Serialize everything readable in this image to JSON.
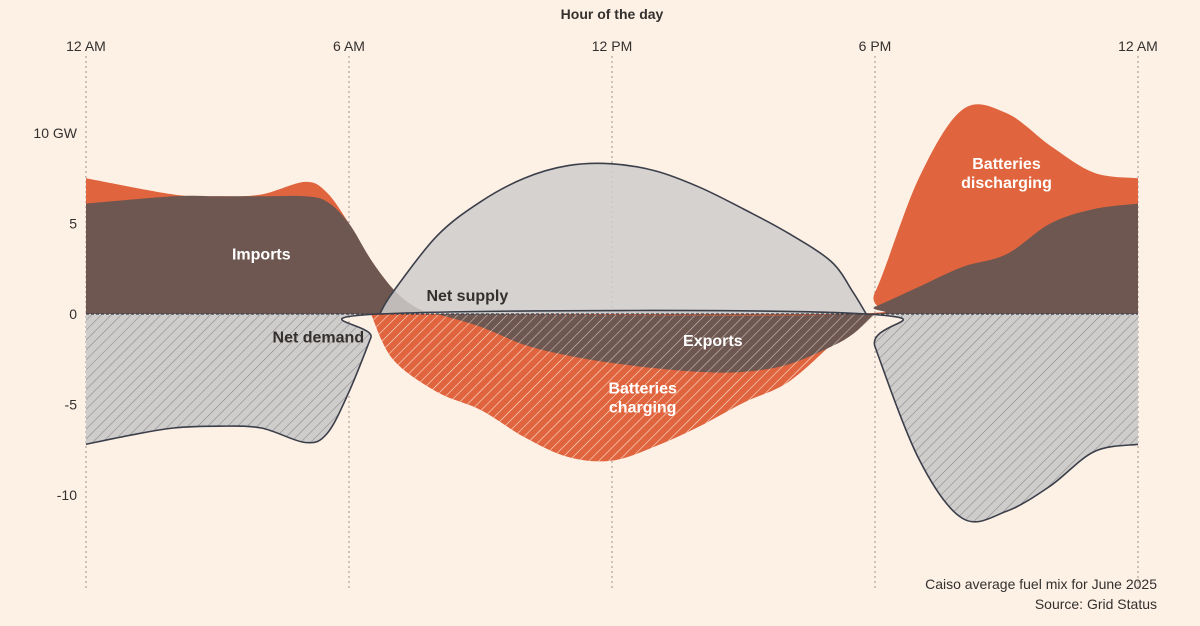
{
  "chart_data": {
    "type": "area",
    "xlabel": "Hour of the day",
    "ylabel": "",
    "x_ticks": [
      {
        "hour": 0,
        "label": "12 AM"
      },
      {
        "hour": 6,
        "label": "6 AM"
      },
      {
        "hour": 12,
        "label": "12 PM"
      },
      {
        "hour": 18,
        "label": "6 PM"
      },
      {
        "hour": 24,
        "label": "12 AM"
      }
    ],
    "y_ticks": [
      {
        "value": 10,
        "label": "10 GW"
      },
      {
        "value": 5,
        "label": "5"
      },
      {
        "value": 0,
        "label": "0"
      },
      {
        "value": -5,
        "label": "-5"
      },
      {
        "value": -10,
        "label": "-10"
      }
    ],
    "xlim": [
      0,
      24
    ],
    "ylim": [
      -15,
      15
    ],
    "grid": "vertical dotted at tick hours",
    "colors": {
      "imports": "#6e5750",
      "batteries": "#e0643d",
      "net": "#cfcdcb",
      "line": "#3b3f4a",
      "hatch_on_gray": "#8d8b89",
      "hatch_on_orange": "#fce2d4",
      "hatch_on_brown": "#c9bcb4"
    },
    "series": [
      {
        "name": "Imports",
        "x": [
          0,
          2,
          3,
          4,
          5,
          5.5,
          6,
          6.5,
          7,
          7.5,
          8,
          9,
          17.5,
          18,
          19,
          20,
          21,
          22,
          23,
          24
        ],
        "values": [
          6.1,
          6.5,
          6.5,
          6.5,
          6.5,
          6.2,
          5.0,
          3.0,
          1.4,
          0.4,
          0,
          0,
          0,
          0.4,
          1.5,
          2.6,
          3.3,
          5.0,
          5.8,
          6.1
        ]
      },
      {
        "name": "Batteries discharging",
        "x": [
          0,
          2,
          3,
          4,
          5,
          5.5,
          6,
          6.5,
          7,
          7.5,
          8,
          9,
          17.5,
          18,
          19,
          20,
          21,
          22,
          23,
          24
        ],
        "values": [
          1.4,
          0.1,
          0,
          0.1,
          0.8,
          0.5,
          0,
          0,
          0,
          0,
          0,
          0,
          0,
          0.8,
          6.0,
          8.7,
          7.8,
          4.3,
          2.0,
          1.4
        ]
      },
      {
        "name": "Net supply",
        "x": [
          6.7,
          7,
          8,
          9,
          10,
          11,
          12,
          13,
          14,
          15,
          16,
          17,
          17.5,
          17.8
        ],
        "values": [
          0,
          1.2,
          4.3,
          6.2,
          7.5,
          8.2,
          8.3,
          7.9,
          7.0,
          5.8,
          4.5,
          2.9,
          1.2,
          0
        ]
      },
      {
        "name": "Net demand",
        "x": [
          0,
          1,
          2,
          3,
          4,
          5,
          5.5,
          6,
          6.5,
          6.7,
          17.8,
          18,
          19,
          20,
          21,
          22,
          23,
          24
        ],
        "values": [
          -7.2,
          -6.7,
          -6.3,
          -6.2,
          -6.3,
          -7.1,
          -6.6,
          -4.3,
          -1.3,
          0,
          0,
          -1.8,
          -8.0,
          -11.3,
          -10.9,
          -9.5,
          -7.6,
          -7.2
        ]
      },
      {
        "name": "Batteries charging",
        "x": [
          6.5,
          7,
          8,
          9,
          10,
          11,
          12,
          13,
          14,
          15,
          16,
          17,
          17.5,
          18
        ],
        "values": [
          0,
          -2.5,
          -4.3,
          -5.3,
          -6.8,
          -7.9,
          -8.1,
          -7.3,
          -6.2,
          -4.9,
          -3.8,
          -1.7,
          -0.5,
          0
        ]
      },
      {
        "name": "Exports",
        "x": [
          8,
          9,
          10,
          11,
          12,
          13,
          14,
          15,
          16,
          17,
          17.5,
          18
        ],
        "values": [
          0,
          -0.7,
          -1.7,
          -2.3,
          -2.7,
          -3.0,
          -3.2,
          -3.2,
          -2.8,
          -1.8,
          -1.1,
          0
        ]
      }
    ],
    "labels": [
      {
        "text": [
          "Imports"
        ],
        "x": 4,
        "y": 3.3,
        "color": "#ffffff"
      },
      {
        "text": [
          "Net supply"
        ],
        "x": 8.7,
        "y": 1.0,
        "color": "#33302e"
      },
      {
        "text": [
          "Net demand"
        ],
        "x": 5.3,
        "y": -1.3,
        "color": "#33302e"
      },
      {
        "text": [
          "Exports"
        ],
        "x": 14.3,
        "y": -1.5,
        "color": "#ffffff"
      },
      {
        "text": [
          "Batteries",
          "charging"
        ],
        "x": 12.7,
        "y": -4.6,
        "color": "#ffffff"
      },
      {
        "text": [
          "Batteries",
          "discharging"
        ],
        "x": 21.0,
        "y": 7.8,
        "color": "#ffffff"
      }
    ],
    "note": "Caiso average fuel mix for June 2025",
    "source": "Source: Grid Status"
  }
}
